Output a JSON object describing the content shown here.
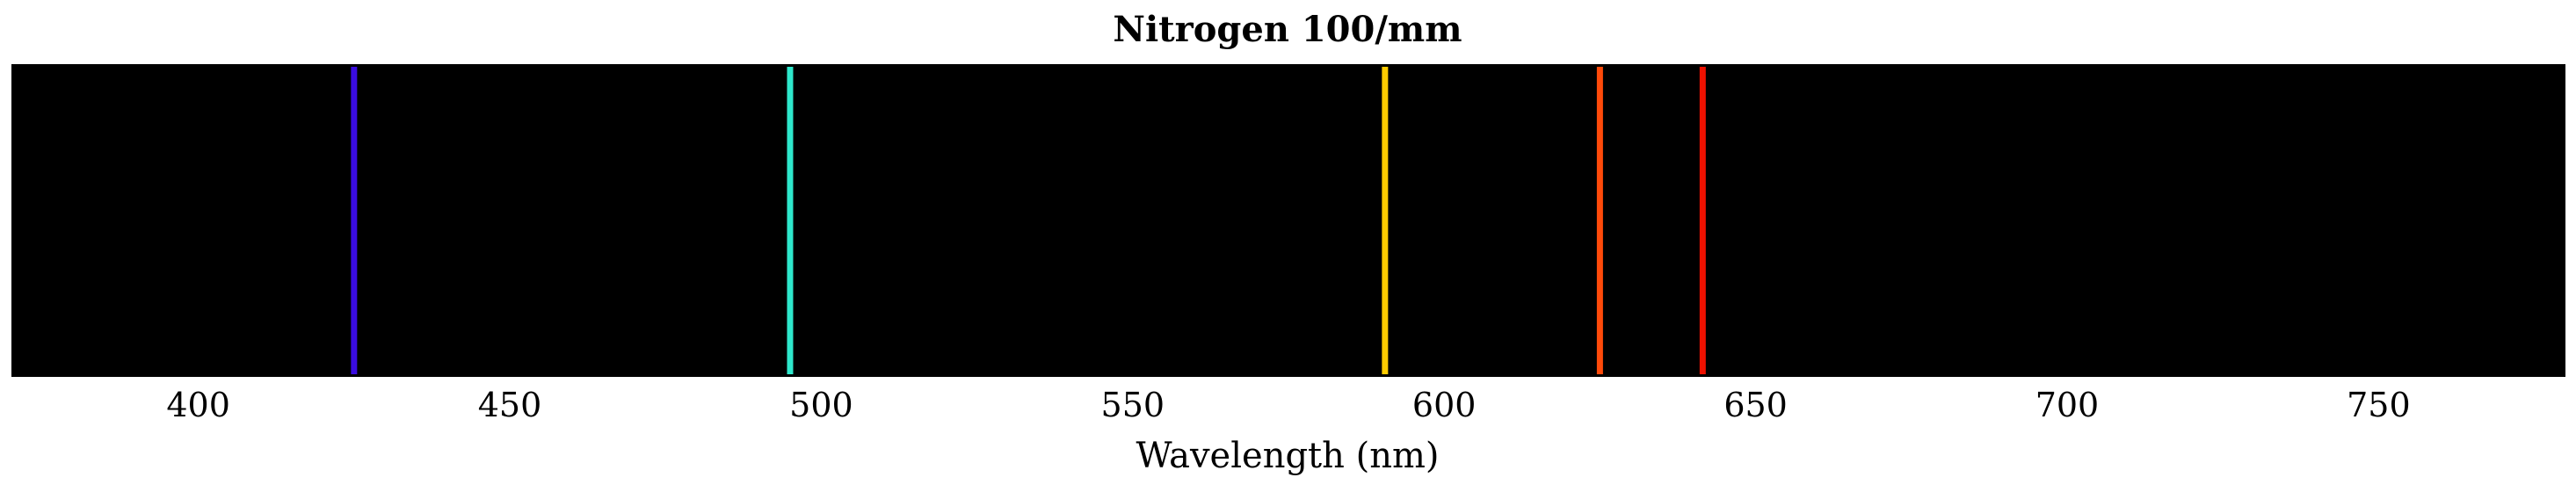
{
  "chart_data": {
    "type": "spectrum",
    "title": "Nitrogen 100/mm",
    "xlabel": "Wavelength (nm)",
    "xlim": [
      370,
      780
    ],
    "x_ticks": [
      400,
      450,
      500,
      550,
      600,
      650,
      700,
      750
    ],
    "background": "#000000",
    "lines": [
      {
        "wavelength": 425,
        "color": "#3a0ce0"
      },
      {
        "wavelength": 495,
        "color": "#2ee8cc"
      },
      {
        "wavelength": 590.5,
        "color": "#ffcc00"
      },
      {
        "wavelength": 625,
        "color": "#ff4a0a"
      },
      {
        "wavelength": 641.5,
        "color": "#ee1100"
      }
    ]
  }
}
